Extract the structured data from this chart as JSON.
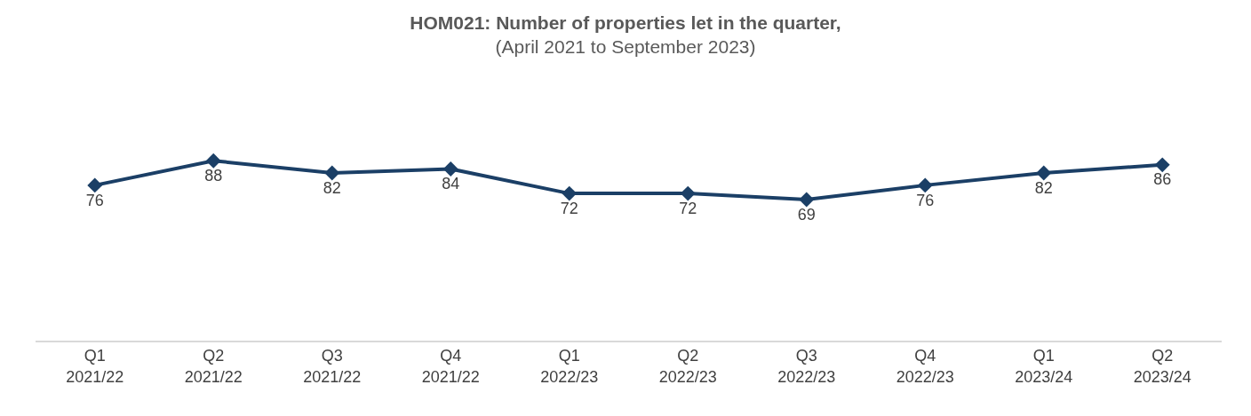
{
  "chart_data": {
    "type": "line",
    "title": "HOM021: Number of properties let in the quarter,",
    "subtitle": "(April 2021 to September 2023)",
    "categories": [
      "Q1\n2021/22",
      "Q2\n2021/22",
      "Q3\n2021/22",
      "Q4\n2021/22",
      "Q1\n2022/23",
      "Q2\n2022/23",
      "Q3\n2022/23",
      "Q4\n2022/23",
      "Q1\n2023/24",
      "Q2\n2023/24"
    ],
    "series": [
      {
        "color": "#1b3f66",
        "values": [
          76,
          88,
          82,
          84,
          72,
          72,
          69,
          76,
          82,
          86
        ]
      }
    ],
    "data_labels": true,
    "grid": false,
    "marker": "diamond",
    "line_style": "solid"
  }
}
